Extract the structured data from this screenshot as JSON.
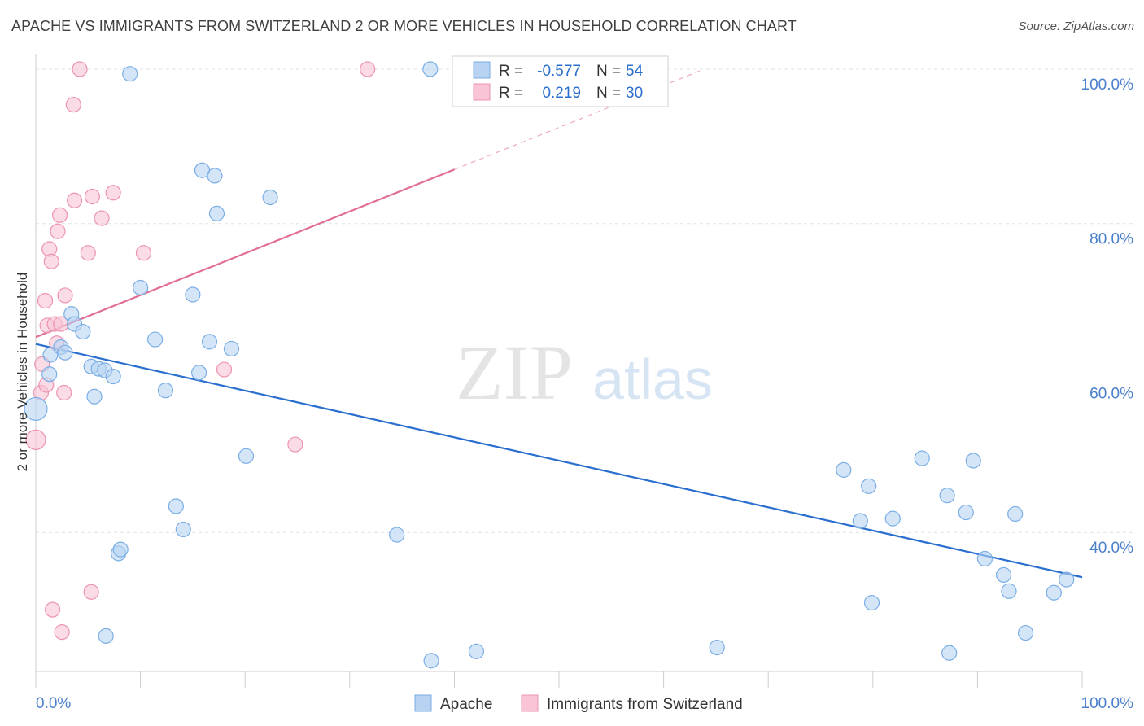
{
  "title": "APACHE VS IMMIGRANTS FROM SWITZERLAND 2 OR MORE VEHICLES IN HOUSEHOLD CORRELATION CHART",
  "source": "Source: ZipAtlas.com",
  "watermark": {
    "zip": "ZIP",
    "atlas": "atlas"
  },
  "colors": {
    "blue_fill": "#b8d3f2",
    "blue_stroke": "#7aaee6",
    "blue_line": "#2a6fcf",
    "pink_fill": "#f9c5d6",
    "pink_stroke": "#ec93b1",
    "pink_line": "#e06f98",
    "axis_label": "#4a7fcc",
    "grid": "#dde3ea"
  },
  "legend": {
    "rows": [
      {
        "r_label": "R =",
        "r_value": "-0.577",
        "n_label": "N =",
        "n_value": "54",
        "series": "blue"
      },
      {
        "r_label": "R =",
        "r_value": "0.219",
        "n_label": "N =",
        "n_value": "30",
        "series": "pink"
      }
    ]
  },
  "bottom_legend": [
    "Apache",
    "Immigrants from Switzerland"
  ],
  "chart_data": {
    "type": "scatter",
    "xlabel": "",
    "ylabel": "2 or more Vehicles in Household",
    "xlim": [
      0,
      100
    ],
    "ylim": [
      22,
      102
    ],
    "x_tick_labels": [
      {
        "value": 0,
        "label": "0.0%"
      },
      {
        "value": 100,
        "label": "100.0%"
      }
    ],
    "y_tick_labels": [
      {
        "value": 100,
        "label": "100.0%"
      },
      {
        "value": 80,
        "label": "80.0%"
      },
      {
        "value": 60,
        "label": "60.0%"
      },
      {
        "value": 40,
        "label": "40.0%"
      }
    ],
    "grid": true,
    "legend_position": "top-center",
    "series": [
      {
        "name": "Apache",
        "color": "blue",
        "trend": {
          "x": [
            0,
            100
          ],
          "y": [
            64.4,
            34.2
          ],
          "dashed_to": null
        },
        "points": [
          [
            0,
            56,
            14
          ],
          [
            1.4,
            63,
            9
          ],
          [
            1.3,
            60.5,
            9
          ],
          [
            2.4,
            64,
            9
          ],
          [
            2.8,
            63.3,
            9
          ],
          [
            3.4,
            68.3,
            9
          ],
          [
            3.7,
            67,
            9
          ],
          [
            4.5,
            66,
            9
          ],
          [
            5.3,
            61.5,
            9
          ],
          [
            5.6,
            57.6,
            9
          ],
          [
            6.0,
            61.2,
            9
          ],
          [
            6.6,
            61.0,
            9
          ],
          [
            7.4,
            60.2,
            9
          ],
          [
            7.9,
            37.3,
            9
          ],
          [
            8.1,
            37.8,
            9
          ],
          [
            6.7,
            26.6,
            9
          ],
          [
            9.0,
            99.4,
            9
          ],
          [
            10.0,
            71.7,
            9
          ],
          [
            11.4,
            65,
            9
          ],
          [
            12.4,
            58.4,
            9
          ],
          [
            13.4,
            43.4,
            9
          ],
          [
            14.1,
            40.4,
            9
          ],
          [
            15.0,
            70.8,
            9
          ],
          [
            15.6,
            60.7,
            9
          ],
          [
            15.9,
            86.9,
            9
          ],
          [
            16.6,
            64.7,
            9
          ],
          [
            17.1,
            86.2,
            9
          ],
          [
            17.3,
            81.3,
            9
          ],
          [
            18.7,
            63.8,
            9
          ],
          [
            20.1,
            49.9,
            9
          ],
          [
            22.4,
            83.4,
            9
          ],
          [
            34.5,
            39.7,
            9
          ],
          [
            37.7,
            100,
            9
          ],
          [
            37.8,
            23.4,
            9
          ],
          [
            42.1,
            24.6,
            9
          ],
          [
            65.1,
            25.1,
            9
          ],
          [
            77.2,
            48.1,
            9
          ],
          [
            78.8,
            41.5,
            9
          ],
          [
            79.6,
            46,
            9
          ],
          [
            79.9,
            30.9,
            9
          ],
          [
            81.9,
            41.8,
            9
          ],
          [
            84.7,
            49.6,
            9
          ],
          [
            87.1,
            44.8,
            9
          ],
          [
            87.3,
            24.4,
            9
          ],
          [
            88.9,
            42.6,
            9
          ],
          [
            89.6,
            49.3,
            9
          ],
          [
            90.7,
            36.6,
            9
          ],
          [
            92.5,
            34.5,
            9
          ],
          [
            93.0,
            32.4,
            9
          ],
          [
            93.6,
            42.4,
            9
          ],
          [
            94.6,
            27.0,
            9
          ],
          [
            97.3,
            32.2,
            9
          ],
          [
            98.5,
            33.9,
            9
          ]
        ]
      },
      {
        "name": "Immigrants from Switzerland",
        "color": "pink",
        "trend": {
          "x": [
            0,
            40
          ],
          "y": [
            65.3,
            87.0
          ],
          "dashed_to": [
            63.5,
            99.8
          ]
        },
        "points": [
          [
            0,
            52,
            12
          ],
          [
            0.5,
            58.1,
            9
          ],
          [
            0.6,
            61.8,
            9
          ],
          [
            0.9,
            70.0,
            9
          ],
          [
            1.0,
            59.1,
            9
          ],
          [
            1.1,
            66.8,
            9
          ],
          [
            1.3,
            76.7,
            9
          ],
          [
            1.5,
            75.1,
            9
          ],
          [
            1.6,
            30,
            9
          ],
          [
            1.8,
            67,
            9
          ],
          [
            2.0,
            64.5,
            9
          ],
          [
            2.1,
            79.0,
            9
          ],
          [
            2.3,
            81.1,
            9
          ],
          [
            2.4,
            67.0,
            9
          ],
          [
            2.5,
            27.1,
            9
          ],
          [
            2.7,
            58.1,
            9
          ],
          [
            2.8,
            70.7,
            9
          ],
          [
            3.6,
            95.4,
            9
          ],
          [
            3.7,
            83.0,
            9
          ],
          [
            4.2,
            100,
            9
          ],
          [
            5.0,
            76.2,
            9
          ],
          [
            5.3,
            32.3,
            9
          ],
          [
            5.4,
            83.5,
            9
          ],
          [
            6.3,
            80.7,
            9
          ],
          [
            7.4,
            84.0,
            9
          ],
          [
            10.3,
            76.2,
            9
          ],
          [
            18.0,
            61.1,
            9
          ],
          [
            24.8,
            51.4,
            9
          ],
          [
            31.7,
            100,
            9
          ]
        ]
      }
    ]
  }
}
